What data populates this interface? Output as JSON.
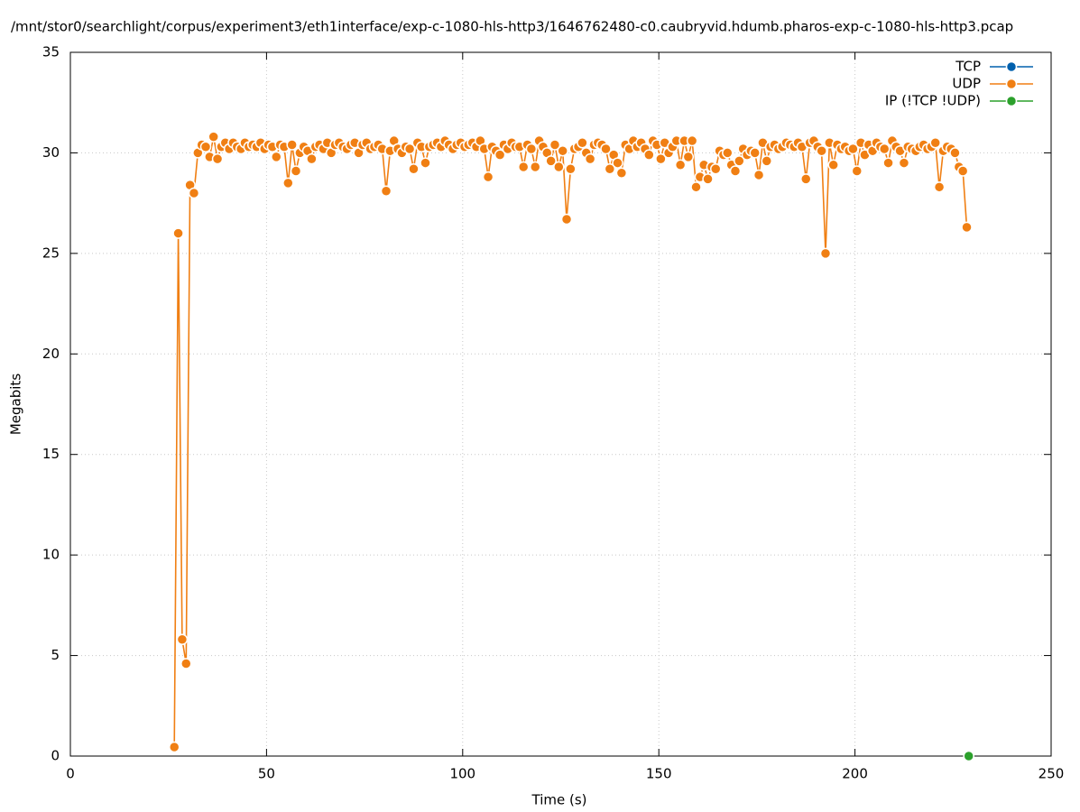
{
  "chart_data": {
    "type": "line",
    "title": "/mnt/stor0/searchlight/corpus/experiment3/eth1interface/exp-c-1080-hls-http3/1646762480-c0.caubryvid.hdumb.pharos-exp-c-1080-hls-http3.pcap",
    "x_label": "Time (s)",
    "y_label": "Megabits",
    "xlim": [
      0,
      250
    ],
    "xticks": [
      0,
      50,
      100,
      150,
      200,
      250
    ],
    "ylim": [
      0,
      35
    ],
    "yticks": [
      0,
      5,
      10,
      15,
      20,
      25,
      30,
      35
    ],
    "grid": true,
    "legend": "top-right",
    "series": [
      {
        "name": "TCP",
        "color": "#0060ad",
        "x": [],
        "values": []
      },
      {
        "name": "UDP",
        "color": "#f07f13",
        "x": [
          26.5,
          27.5,
          28.5,
          29.5,
          30.5,
          31.5,
          32.5,
          33.5,
          34.5,
          35.5,
          36.5,
          37.5,
          38.5,
          39.5,
          40.5,
          41.5,
          42.5,
          43.5,
          44.5,
          45.5,
          46.5,
          47.5,
          48.5,
          49.5,
          50.5,
          51.5,
          52.5,
          53.5,
          54.5,
          55.5,
          56.5,
          57.5,
          58.5,
          59.5,
          60.5,
          61.5,
          62.5,
          63.5,
          64.5,
          65.5,
          66.5,
          67.5,
          68.5,
          69.5,
          70.5,
          71.5,
          72.5,
          73.5,
          74.5,
          75.5,
          76.5,
          77.5,
          78.5,
          79.5,
          80.5,
          81.5,
          82.5,
          83.5,
          84.5,
          85.5,
          86.5,
          87.5,
          88.5,
          89.5,
          90.5,
          91.5,
          92.5,
          93.5,
          94.5,
          95.5,
          96.5,
          97.5,
          98.5,
          99.5,
          100.5,
          101.5,
          102.5,
          103.5,
          104.5,
          105.5,
          106.5,
          107.5,
          108.5,
          109.5,
          110.5,
          111.5,
          112.5,
          113.5,
          114.5,
          115.5,
          116.5,
          117.5,
          118.5,
          119.5,
          120.5,
          121.5,
          122.5,
          123.5,
          124.5,
          125.5,
          126.5,
          127.5,
          128.5,
          129.5,
          130.5,
          131.5,
          132.5,
          133.5,
          134.5,
          135.5,
          136.5,
          137.5,
          138.5,
          139.5,
          140.5,
          141.5,
          142.5,
          143.5,
          144.5,
          145.5,
          146.5,
          147.5,
          148.5,
          149.5,
          150.5,
          151.5,
          152.5,
          153.5,
          154.5,
          155.5,
          156.5,
          157.5,
          158.5,
          159.5,
          160.5,
          161.5,
          162.5,
          163.5,
          164.5,
          165.5,
          166.5,
          167.5,
          168.5,
          169.5,
          170.5,
          171.5,
          172.5,
          173.5,
          174.5,
          175.5,
          176.5,
          177.5,
          178.5,
          179.5,
          180.5,
          181.5,
          182.5,
          183.5,
          184.5,
          185.5,
          186.5,
          187.5,
          188.5,
          189.5,
          190.5,
          191.5,
          192.5,
          193.5,
          194.5,
          195.5,
          196.5,
          197.5,
          198.5,
          199.5,
          200.5,
          201.5,
          202.5,
          203.5,
          204.5,
          205.5,
          206.5,
          207.5,
          208.5,
          209.5,
          210.5,
          211.5,
          212.5,
          213.5,
          214.5,
          215.5,
          216.5,
          217.5,
          218.5,
          219.5,
          220.5,
          221.5,
          222.5,
          223.5,
          224.5,
          225.5,
          226.5,
          227.5,
          228.5
        ],
        "values": [
          0.45,
          26.0,
          5.8,
          4.6,
          28.4,
          28.0,
          30.0,
          30.4,
          30.3,
          29.8,
          30.8,
          29.7,
          30.3,
          30.5,
          30.2,
          30.5,
          30.3,
          30.2,
          30.5,
          30.3,
          30.4,
          30.3,
          30.5,
          30.2,
          30.4,
          30.3,
          29.8,
          30.4,
          30.3,
          28.5,
          30.4,
          29.1,
          30.0,
          30.3,
          30.1,
          29.7,
          30.3,
          30.4,
          30.2,
          30.5,
          30.0,
          30.4,
          30.5,
          30.3,
          30.2,
          30.4,
          30.5,
          30.0,
          30.4,
          30.5,
          30.2,
          30.3,
          30.4,
          30.2,
          28.1,
          30.1,
          30.6,
          30.2,
          30.0,
          30.3,
          30.2,
          29.2,
          30.5,
          30.3,
          29.5,
          30.3,
          30.4,
          30.5,
          30.3,
          30.6,
          30.4,
          30.2,
          30.4,
          30.5,
          30.3,
          30.4,
          30.5,
          30.3,
          30.6,
          30.2,
          28.8,
          30.3,
          30.1,
          29.9,
          30.4,
          30.2,
          30.5,
          30.3,
          30.3,
          29.3,
          30.4,
          30.2,
          29.3,
          30.6,
          30.3,
          30.0,
          29.6,
          30.4,
          29.3,
          30.1,
          26.7,
          29.2,
          30.2,
          30.3,
          30.5,
          30.0,
          29.7,
          30.4,
          30.5,
          30.4,
          30.2,
          29.2,
          29.9,
          29.5,
          29.0,
          30.4,
          30.2,
          30.6,
          30.3,
          30.5,
          30.2,
          29.9,
          30.6,
          30.4,
          29.7,
          30.5,
          30.0,
          30.3,
          30.6,
          29.4,
          30.6,
          29.8,
          30.6,
          28.3,
          28.8,
          29.4,
          28.7,
          29.3,
          29.2,
          30.1,
          29.9,
          30.0,
          29.4,
          29.1,
          29.6,
          30.2,
          29.9,
          30.1,
          30.0,
          28.9,
          30.5,
          29.6,
          30.3,
          30.4,
          30.2,
          30.3,
          30.5,
          30.4,
          30.3,
          30.5,
          30.3,
          28.7,
          30.5,
          30.6,
          30.3,
          30.1,
          25.0,
          30.5,
          29.4,
          30.4,
          30.2,
          30.3,
          30.1,
          30.2,
          29.1,
          30.5,
          29.9,
          30.4,
          30.1,
          30.5,
          30.3,
          30.2,
          29.5,
          30.6,
          30.3,
          30.1,
          29.5,
          30.3,
          30.2,
          30.1,
          30.3,
          30.4,
          30.2,
          30.3,
          30.5,
          28.3,
          30.1,
          30.3,
          30.2,
          30.0,
          29.3,
          29.1,
          26.3
        ]
      },
      {
        "name": "IP (!TCP  !UDP)",
        "color": "#2ca02c",
        "x": [
          229
        ],
        "values": [
          0
        ]
      }
    ]
  }
}
